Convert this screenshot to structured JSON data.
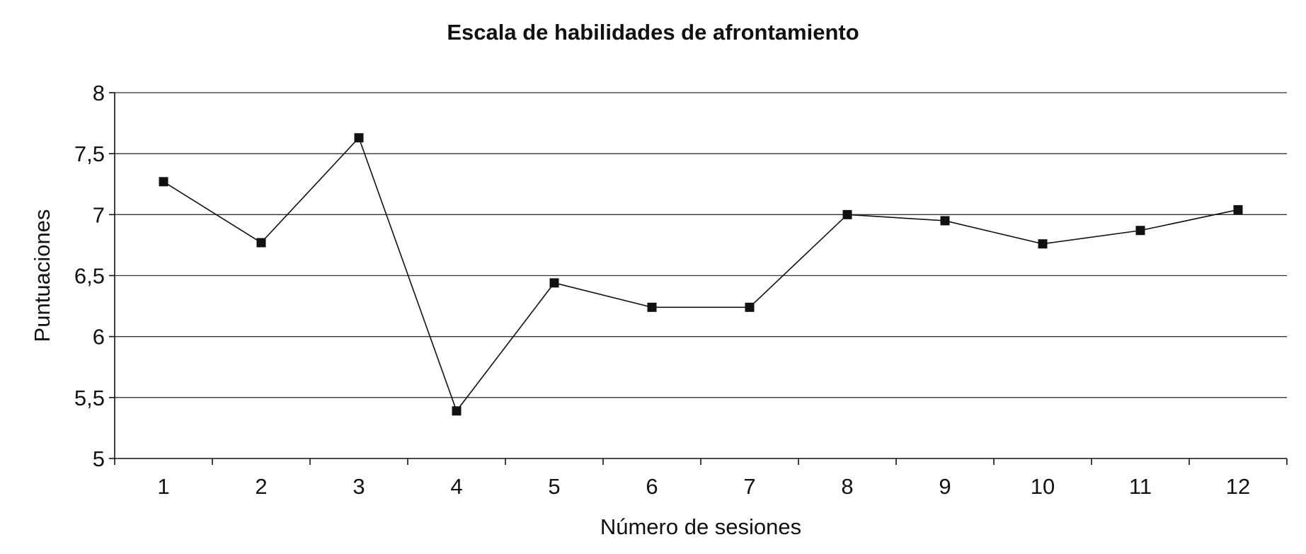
{
  "chart_data": {
    "type": "line",
    "title": "Escala de habilidades de afrontamiento",
    "xlabel": "Número de sesiones",
    "ylabel": "Puntuaciones",
    "categories": [
      "1",
      "2",
      "3",
      "4",
      "5",
      "6",
      "7",
      "8",
      "9",
      "10",
      "11",
      "12"
    ],
    "series": [
      {
        "values": [
          7.27,
          6.77,
          7.63,
          5.39,
          6.44,
          6.24,
          6.24,
          7.0,
          6.95,
          6.76,
          6.87,
          7.04
        ]
      }
    ],
    "ylim": [
      5,
      8
    ],
    "yticks": [
      5,
      5.5,
      6,
      6.5,
      7,
      7.5,
      8
    ],
    "ytick_labels": [
      "5",
      "5,5",
      "6",
      "6,5",
      "7",
      "7,5",
      "8"
    ],
    "grid": "horizontal",
    "marker": "square",
    "line_color": "#111111",
    "grid_color": "#333333"
  }
}
